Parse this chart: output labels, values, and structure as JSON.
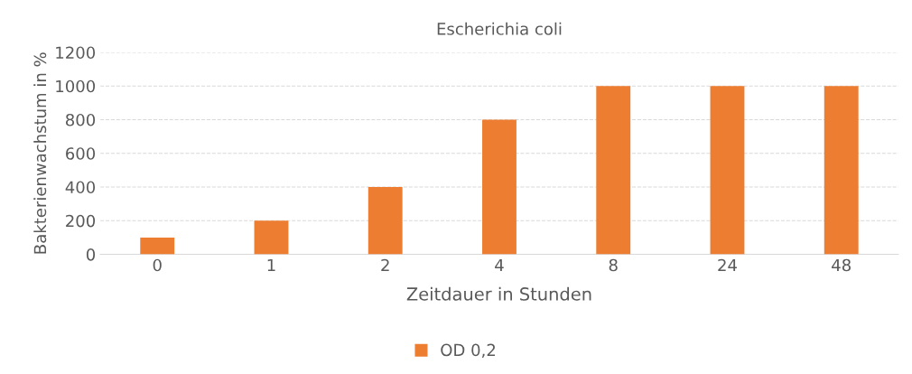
{
  "chart_data": {
    "type": "bar",
    "title": "Escherichia coli",
    "xlabel": "Zeitdauer in Stunden",
    "ylabel": "Bakterienwachstum in %",
    "categories": [
      "0",
      "1",
      "2",
      "4",
      "8",
      "24",
      "48"
    ],
    "series": [
      {
        "name": "OD 0,2",
        "color": "#ed7d31",
        "values": [
          100,
          200,
          400,
          800,
          1000,
          1000,
          1000
        ]
      }
    ],
    "ylim": [
      0,
      1200
    ],
    "yticks": [
      0,
      200,
      400,
      600,
      800,
      1000,
      1200
    ],
    "grid": "y",
    "legend": "bottom"
  }
}
